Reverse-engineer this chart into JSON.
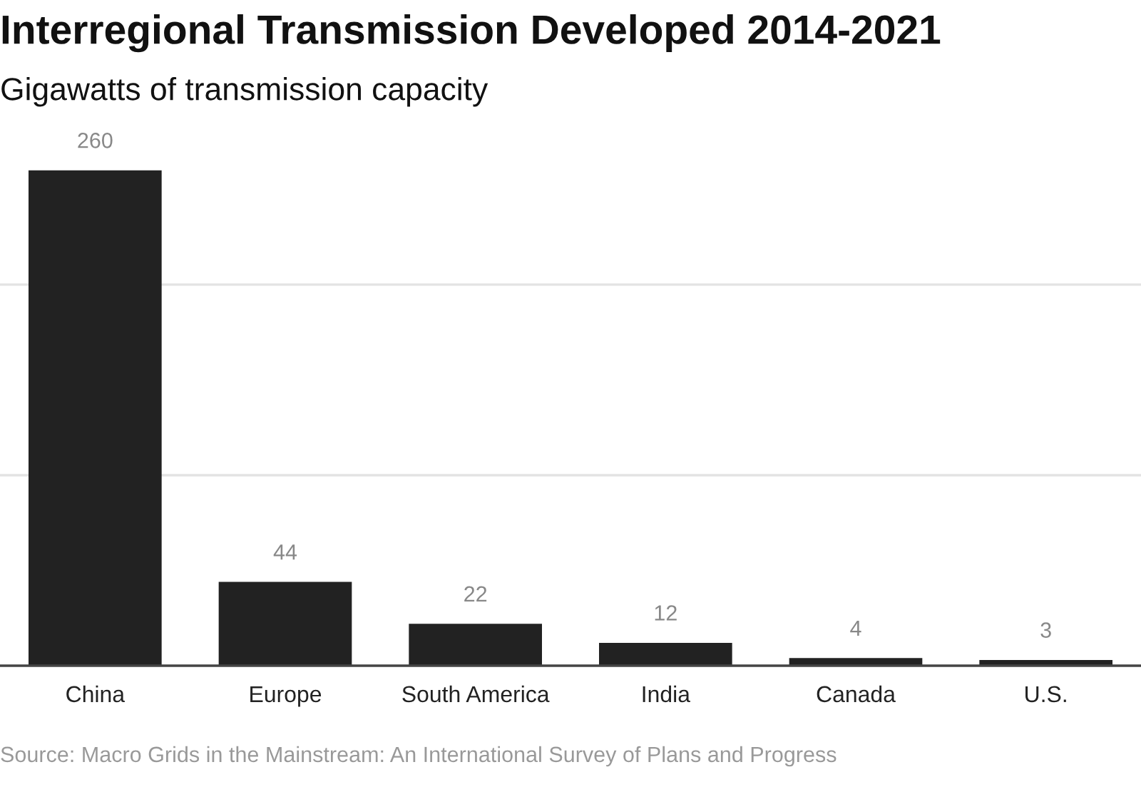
{
  "chart_data": {
    "type": "bar",
    "title": "Interregional Transmission Developed 2014-2021",
    "subtitle": "Gigawatts of transmission capacity",
    "categories": [
      "China",
      "Europe",
      "South America",
      "India",
      "Canada",
      "U.S."
    ],
    "values": [
      260,
      44,
      22,
      12,
      4,
      3
    ],
    "color": "#222222",
    "ref_lines": [
      {
        "axis": "y",
        "value": 100,
        "color": "#e3e3e3"
      },
      {
        "axis": "y",
        "value": 200,
        "color": "#e3e3e3"
      }
    ],
    "tick_labels": "x",
    "data_labels": true,
    "annotations": [
      "Source: Macro Grids in the Mainstream: An International Survey of Plans and Progress"
    ]
  }
}
